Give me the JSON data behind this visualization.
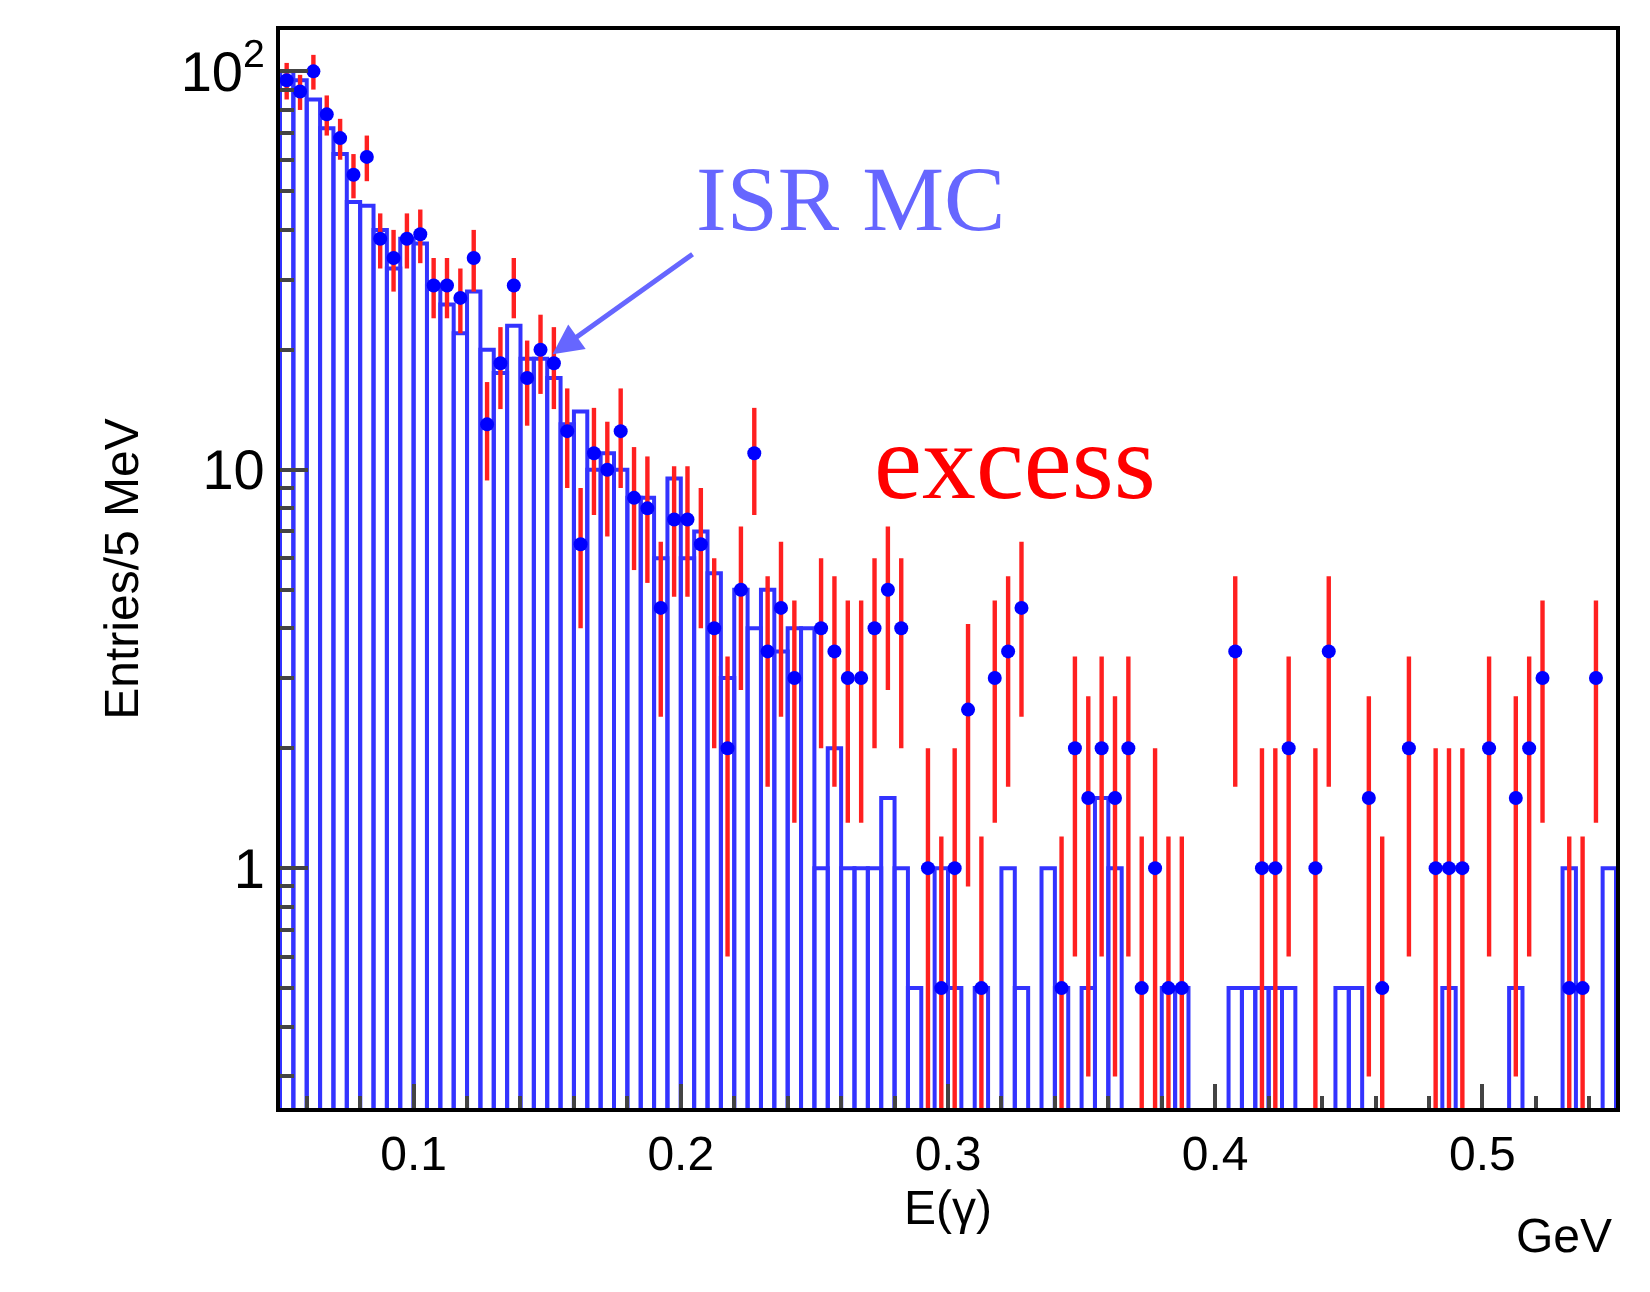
{
  "chart_data": {
    "type": "scatter",
    "xlabel": "E(γ)",
    "ylabel": "Entries/5 MeV",
    "x": [
      0.0525,
      0.0575,
      0.0625,
      0.0675,
      0.0725,
      0.0775,
      0.0825,
      0.0875,
      0.0925,
      0.0975,
      0.1025,
      0.1075,
      0.1125,
      0.1175,
      0.1225,
      0.1275,
      0.1325,
      0.1375,
      0.1425,
      0.1475,
      0.1525,
      0.1575,
      0.1625,
      0.1675,
      0.1725,
      0.1775,
      0.1825,
      0.1875,
      0.1925,
      0.1975,
      0.2025,
      0.2075,
      0.2125,
      0.2175,
      0.2225,
      0.2275,
      0.2325,
      0.2375,
      0.2425,
      0.2475,
      0.2525,
      0.2575,
      0.2625,
      0.2675,
      0.2725,
      0.2775,
      0.2825,
      0.2875,
      0.2925,
      0.2975,
      0.3025,
      0.3075,
      0.3125,
      0.3175,
      0.3225,
      0.3275,
      0.3325,
      0.3375,
      0.3425,
      0.3475,
      0.3525,
      0.3575,
      0.3625,
      0.3675,
      0.3725,
      0.3775,
      0.3825,
      0.3875,
      0.3925,
      0.3975,
      0.4025,
      0.4075,
      0.4125,
      0.4175,
      0.4225,
      0.4275,
      0.4325,
      0.4375,
      0.4425,
      0.4475,
      0.4525,
      0.4575,
      0.4625,
      0.4675,
      0.4725,
      0.4775,
      0.4825,
      0.4875,
      0.4925,
      0.4975,
      0.5025,
      0.5075,
      0.5125,
      0.5175,
      0.5225,
      0.5275,
      0.5325,
      0.5375,
      0.5425,
      0.5475
    ],
    "series": [
      {
        "type": "bar",
        "color": "#3333ff",
        "values": [
          100,
          95,
          85,
          72,
          62,
          47,
          46,
          40,
          32,
          38,
          37,
          29,
          26,
          22,
          28,
          20,
          17.5,
          23,
          19,
          19,
          17,
          13,
          14,
          10,
          11,
          10,
          8.5,
          8.5,
          6,
          9.5,
          6,
          7,
          5.5,
          3,
          5,
          4,
          5,
          3.5,
          4,
          4,
          1,
          2,
          1,
          1,
          1,
          1.5,
          1,
          0.5,
          null,
          1,
          0.5,
          null,
          0.5,
          null,
          1,
          0.5,
          null,
          1,
          0.5,
          null,
          0.5,
          1.5,
          1,
          null,
          null,
          null,
          0.5,
          0.5,
          null,
          null,
          null,
          0.5,
          0.5,
          0.5,
          0.5,
          0.5,
          null,
          null,
          null,
          0.5,
          0.5,
          null,
          null,
          null,
          null,
          null,
          null,
          0.5,
          null,
          null,
          null,
          null,
          0.5,
          null,
          null,
          null,
          1,
          null,
          null,
          1
        ]
      },
      {
        "color": "#0000ff",
        "marker": "circle",
        "values": [
          95,
          89,
          100,
          78,
          68,
          55,
          61,
          38,
          34,
          38,
          39,
          29,
          29,
          27,
          34,
          13,
          18.5,
          29,
          17,
          20,
          18.5,
          12.5,
          6.5,
          11,
          10,
          12.5,
          8.5,
          8,
          4.5,
          7.5,
          7.5,
          6.5,
          4,
          2,
          5,
          11,
          3.5,
          4.5,
          3,
          null,
          4,
          3.5,
          3,
          3,
          4,
          5,
          4,
          null,
          1,
          0.5,
          1,
          2.5,
          0.5,
          3,
          3.5,
          4.5,
          null,
          null,
          0.5,
          2,
          1.5,
          2,
          1.5,
          2,
          0.5,
          1,
          0.5,
          0.5,
          null,
          null,
          null,
          3.5,
          null,
          1,
          1,
          2,
          null,
          1,
          3.5,
          null,
          null,
          1.5,
          0.5,
          null,
          2,
          null,
          1,
          1,
          1,
          null,
          2,
          null,
          1.5,
          2,
          3,
          null,
          0.5,
          0.5,
          3,
          null
        ],
        "errors": [
          [
            85,
            105
          ],
          [
            80,
            98
          ],
          [
            90,
            110
          ],
          [
            69,
            87
          ],
          [
            60,
            76
          ],
          [
            48,
            62
          ],
          [
            53,
            69
          ],
          [
            32,
            44
          ],
          [
            28,
            40
          ],
          [
            32,
            44
          ],
          [
            33,
            45
          ],
          [
            24,
            34
          ],
          [
            24,
            34
          ],
          [
            22,
            32
          ],
          [
            28,
            40
          ],
          [
            9.4,
            16.6
          ],
          [
            14.2,
            22.8
          ],
          [
            24,
            34
          ],
          [
            12.9,
            21.1
          ],
          [
            15.5,
            24.5
          ],
          [
            14.2,
            22.8
          ],
          [
            9,
            16
          ],
          [
            4,
            9
          ],
          [
            7.7,
            14.3
          ],
          [
            6.8,
            13.2
          ],
          [
            9,
            16
          ],
          [
            5.6,
            11.4
          ],
          [
            5.2,
            10.8
          ],
          [
            2.4,
            6.6
          ],
          [
            4.8,
            10.2
          ],
          [
            4.8,
            10.2
          ],
          [
            4,
            9
          ],
          [
            2,
            6
          ],
          [
            0.6,
            3.4
          ],
          [
            2.8,
            7.2
          ],
          [
            7.7,
            14.3
          ],
          [
            1.6,
            5.4
          ],
          [
            2.4,
            6.6
          ],
          [
            1.3,
            4.7
          ],
          null,
          [
            2,
            6
          ],
          [
            1.6,
            5.4
          ],
          [
            1.3,
            4.7
          ],
          [
            1.3,
            4.7
          ],
          [
            2,
            6
          ],
          [
            2.8,
            7.2
          ],
          [
            2,
            6
          ],
          null,
          [
            0.25,
            2
          ],
          [
            0.25,
            1.2
          ],
          [
            0.25,
            2
          ],
          [
            0.9,
            4.1
          ],
          [
            0.25,
            1.2
          ],
          [
            1.3,
            4.7
          ],
          [
            1.6,
            5.4
          ],
          [
            2.4,
            6.6
          ],
          null,
          null,
          [
            0.25,
            1.2
          ],
          [
            0.6,
            3.4
          ],
          [
            0.3,
            2.7
          ],
          [
            0.6,
            3.4
          ],
          [
            0.3,
            2.7
          ],
          [
            0.6,
            3.4
          ],
          [
            0.25,
            1.2
          ],
          [
            0.25,
            2
          ],
          [
            0.25,
            1.2
          ],
          [
            0.25,
            1.2
          ],
          null,
          null,
          null,
          [
            1.6,
            5.4
          ],
          null,
          [
            0.25,
            2
          ],
          [
            0.25,
            2
          ],
          [
            0.6,
            3.4
          ],
          null,
          [
            0.25,
            2
          ],
          [
            1.6,
            5.4
          ],
          null,
          null,
          [
            0.3,
            2.7
          ],
          [
            0.25,
            1.2
          ],
          null,
          [
            0.6,
            3.4
          ],
          null,
          [
            0.25,
            2
          ],
          [
            0.25,
            2
          ],
          [
            0.25,
            2
          ],
          null,
          [
            0.6,
            3.4
          ],
          null,
          [
            0.3,
            2.7
          ],
          [
            0.6,
            3.4
          ],
          [
            1.3,
            4.7
          ],
          null,
          [
            0.25,
            1.2
          ],
          [
            0.25,
            1.2
          ],
          [
            1.3,
            4.7
          ],
          null
        ]
      }
    ],
    "xlim": [
      0.05,
      0.55
    ],
    "xticks": [
      0.1,
      0.2,
      0.3,
      0.4,
      0.5
    ],
    "ylim": [
      0.25,
      127
    ],
    "yticks": [
      1,
      10,
      {
        "value": 100,
        "label": "10$^{2}$"
      }
    ],
    "log": "y",
    "annotations": [
      {
        "text": "ISR MC",
        "x": 0.152,
        "y": 19.5
      },
      "excess",
      "GeV"
    ]
  }
}
